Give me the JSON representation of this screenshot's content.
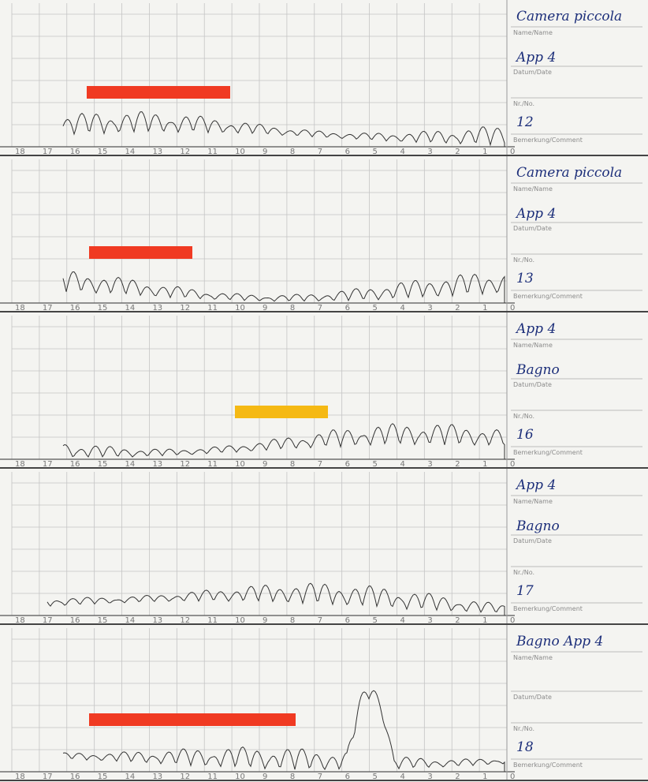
{
  "field_labels": {
    "name": "Name/Name",
    "date": "Datum/Date",
    "number": "Nr./No.",
    "comment": "Bemerkung/Comment"
  },
  "hour_labels": [
    "18",
    "17",
    "16",
    "15",
    "14",
    "13",
    "12",
    "11",
    "10",
    "9",
    "8",
    "7",
    "6",
    "5",
    "4",
    "3",
    "2",
    "1",
    "0"
  ],
  "strips": [
    {
      "name": "Camera piccola",
      "date": "App 4",
      "number": "12"
    },
    {
      "name": "Camera piccola",
      "date": "App 4",
      "number": "13"
    },
    {
      "name": "App 4",
      "date": "Bagno",
      "number": "16"
    },
    {
      "name": "App 4",
      "date": "Bagno",
      "number": "17"
    },
    {
      "name": "Bagno App 4",
      "number": "18"
    }
  ]
}
